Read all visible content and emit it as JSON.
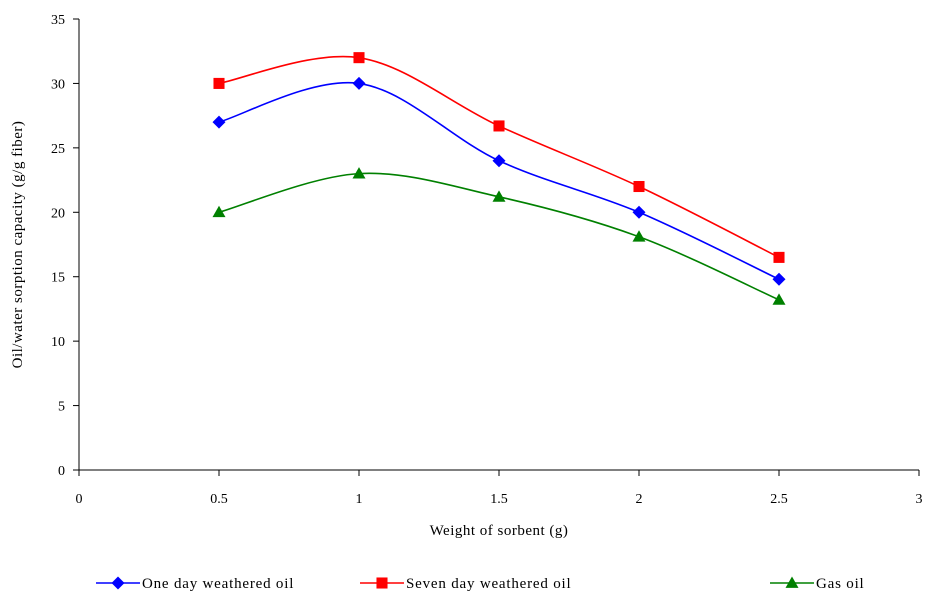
{
  "chart_data": {
    "type": "line",
    "title": "",
    "xlabel": "Weight of sorbent (g)",
    "ylabel": "Oil/water sorption capacity (g/g fiber)",
    "xlim": [
      0,
      3
    ],
    "ylim": [
      0,
      35
    ],
    "xticks": [
      0,
      0.5,
      1,
      1.5,
      2,
      2.5,
      3
    ],
    "xtick_labels": [
      "0",
      "0.5",
      "1",
      "1.5",
      "2",
      "2.5",
      "3"
    ],
    "yticks": [
      0,
      5,
      10,
      15,
      20,
      25,
      30,
      35
    ],
    "ytick_labels": [
      "0",
      "5",
      "10",
      "15",
      "20",
      "25",
      "30",
      "35"
    ],
    "grid": false,
    "legend_position": "bottom",
    "x": [
      0.5,
      1,
      1.5,
      2,
      2.5
    ],
    "series": [
      {
        "name": "One day weathered oil",
        "color": "#0000ff",
        "marker": "diamond",
        "values": [
          27.0,
          30.0,
          24.0,
          20.0,
          14.8
        ]
      },
      {
        "name": "Seven day weathered oil",
        "color": "#ff0000",
        "marker": "square",
        "values": [
          30.0,
          32.0,
          26.7,
          22.0,
          16.5
        ]
      },
      {
        "name": "Gas oil",
        "color": "#008000",
        "marker": "triangle",
        "values": [
          20.0,
          23.0,
          21.2,
          18.1,
          13.2
        ]
      }
    ]
  }
}
